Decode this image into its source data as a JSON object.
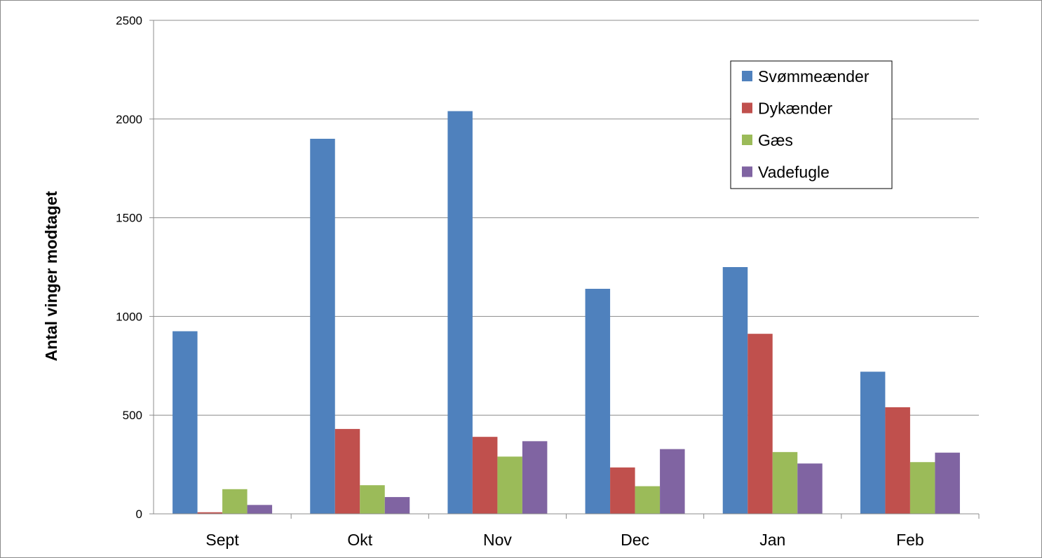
{
  "chart_data": {
    "type": "bar",
    "title": "",
    "xlabel": "",
    "ylabel": "Antal vinger modtaget",
    "ylim": [
      0,
      2500
    ],
    "yticks": [
      0,
      500,
      1000,
      1500,
      2000,
      2500
    ],
    "categories": [
      "Sept",
      "Okt",
      "Nov",
      "Dec",
      "Jan",
      "Feb"
    ],
    "series": [
      {
        "name": "Svømmeænder",
        "color": "#4f81bd",
        "values": [
          925,
          1900,
          2040,
          1140,
          1250,
          720
        ]
      },
      {
        "name": "Dykænder",
        "color": "#c0504d",
        "values": [
          8,
          430,
          390,
          235,
          912,
          540
        ]
      },
      {
        "name": "Gæs",
        "color": "#9bbb59",
        "values": [
          125,
          145,
          290,
          140,
          313,
          262
        ]
      },
      {
        "name": "Vadefugle",
        "color": "#8064a2",
        "values": [
          45,
          85,
          368,
          328,
          255,
          310
        ]
      }
    ],
    "grid": true,
    "legend_position": "top-right"
  }
}
